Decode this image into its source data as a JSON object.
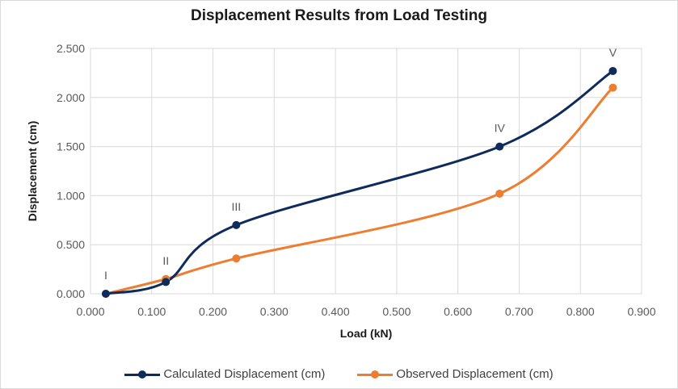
{
  "chart_data": {
    "type": "scatter",
    "title": "Displacement Results from Load Testing",
    "xlabel": "Load (kN)",
    "ylabel": "Displacement (cm)",
    "xlim": [
      0,
      0.9
    ],
    "ylim": [
      0,
      2.5
    ],
    "x_ticks": [
      "0.000",
      "0.100",
      "0.200",
      "0.300",
      "0.400",
      "0.500",
      "0.600",
      "0.700",
      "0.800",
      "0.900"
    ],
    "y_ticks": [
      "0.000",
      "0.500",
      "1.000",
      "1.500",
      "2.000",
      "2.500"
    ],
    "grid": true,
    "smooth_lines": true,
    "legend_position": "bottom",
    "point_labels": [
      "I",
      "II",
      "III",
      "IV",
      "V"
    ],
    "series": [
      {
        "name": "Calculated Displacement (cm)",
        "color": "#0f2b5b",
        "x": [
          0.025,
          0.123,
          0.238,
          0.668,
          0.853
        ],
        "y": [
          0.0,
          0.12,
          0.7,
          1.5,
          2.27
        ]
      },
      {
        "name": "Observed Displacement (cm)",
        "color": "#ed7d31",
        "x": [
          0.025,
          0.123,
          0.238,
          0.668,
          0.853
        ],
        "y": [
          0.0,
          0.15,
          0.36,
          1.02,
          2.1
        ]
      }
    ]
  }
}
